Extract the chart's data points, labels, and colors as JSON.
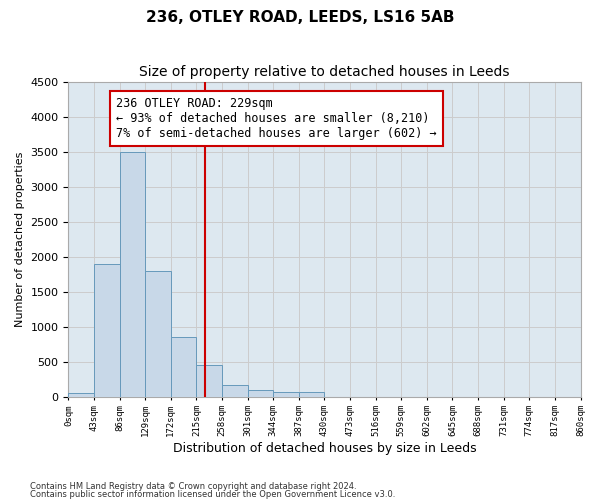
{
  "title": "236, OTLEY ROAD, LEEDS, LS16 5AB",
  "subtitle": "Size of property relative to detached houses in Leeds",
  "xlabel": "Distribution of detached houses by size in Leeds",
  "ylabel": "Number of detached properties",
  "footnote1": "Contains HM Land Registry data © Crown copyright and database right 2024.",
  "footnote2": "Contains public sector information licensed under the Open Government Licence v3.0.",
  "annotation_line1": "236 OTLEY ROAD: 229sqm",
  "annotation_line2": "← 93% of detached houses are smaller (8,210)",
  "annotation_line3": "7% of semi-detached houses are larger (602) →",
  "property_size": 229,
  "bar_left_edges": [
    0,
    43,
    86,
    129,
    172,
    215,
    258,
    301,
    344,
    387,
    430,
    473,
    516,
    559,
    602,
    645,
    688,
    731,
    774,
    817
  ],
  "bar_heights": [
    50,
    1900,
    3500,
    1800,
    850,
    450,
    160,
    100,
    70,
    60,
    0,
    0,
    0,
    0,
    0,
    0,
    0,
    0,
    0,
    0
  ],
  "tick_labels": [
    "0sqm",
    "43sqm",
    "86sqm",
    "129sqm",
    "172sqm",
    "215sqm",
    "258sqm",
    "301sqm",
    "344sqm",
    "387sqm",
    "430sqm",
    "473sqm",
    "516sqm",
    "559sqm",
    "602sqm",
    "645sqm",
    "688sqm",
    "731sqm",
    "774sqm",
    "817sqm",
    "860sqm"
  ],
  "bar_color": "#c8d8e8",
  "bar_edge_color": "#6699bb",
  "vline_color": "#cc0000",
  "vline_x": 229,
  "ylim": [
    0,
    4500
  ],
  "xlim": [
    0,
    860
  ],
  "bin_width": 43,
  "grid_color": "#cccccc",
  "bg_color": "#dde8f0",
  "title_fontsize": 11,
  "subtitle_fontsize": 10,
  "annotation_fontsize": 8.5,
  "yticks": [
    0,
    500,
    1000,
    1500,
    2000,
    2500,
    3000,
    3500,
    4000,
    4500
  ]
}
